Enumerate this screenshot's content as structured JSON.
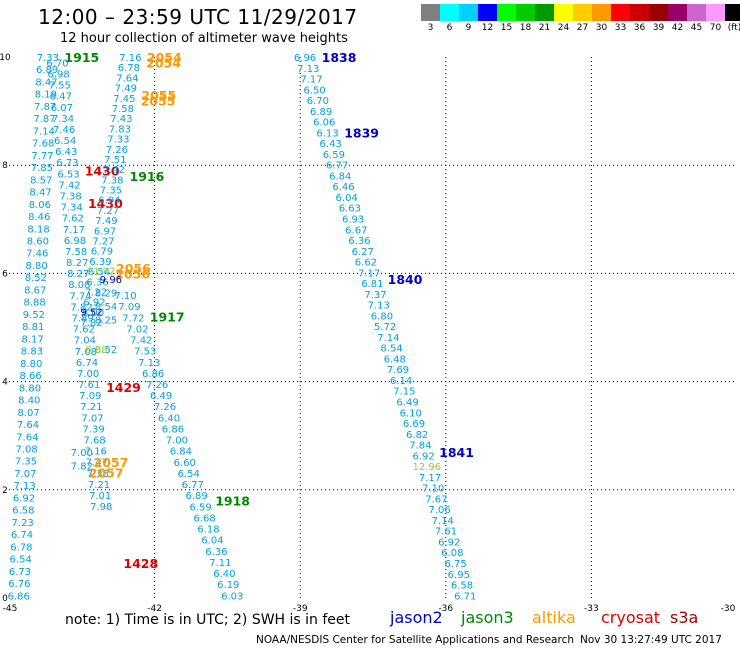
{
  "title": "12:00 – 23:59 UTC 11/29/2017",
  "subtitle": "12 hour collection of altimeter wave heights",
  "legend": {
    "labels": [
      "3",
      "6",
      "9",
      "12",
      "15",
      "18",
      "21",
      "24",
      "27",
      "30",
      "33",
      "36",
      "39",
      "42",
      "45",
      "70",
      "(ft)"
    ],
    "colors": [
      "#808080",
      "#00ffff",
      "#00d0ff",
      "#0000ff",
      "#00ff00",
      "#00cc00",
      "#009900",
      "#ffff00",
      "#ffcc00",
      "#ff9900",
      "#ff0000",
      "#cc0000",
      "#990000",
      "#990066",
      "#cc66cc",
      "#ff99ff",
      "#000000"
    ]
  },
  "note": "note: 1) Time is in UTC; 2) SWH is in feet",
  "satellites": [
    {
      "name": "jason2",
      "color": "#0000cc"
    },
    {
      "name": "jason3",
      "color": "#008800"
    },
    {
      "name": "altika",
      "color": "#ff9900"
    },
    {
      "name": "cryosat",
      "color": "#dd0000"
    },
    {
      "name": "s3a",
      "color": "#990000"
    }
  ],
  "footer_left": "NOAA/NESDIS Center for Satellite Applications and Research",
  "footer_right": "Nov 30 13:27:49 UTC 2017",
  "colors": {
    "value": "#00a0e0",
    "jason2": "#0000cc",
    "jason3": "#008800",
    "altika": "#ff9900",
    "cryosat": "#dd0000",
    "s3a": "#990000",
    "yellowgreen": "#99cc33",
    "navy": "#000099"
  },
  "chart_data": {
    "type": "scatter",
    "xlim": [
      -45,
      -30
    ],
    "ylim": [
      0,
      10
    ],
    "x_ticks": [
      "-45",
      "-42",
      "-39",
      "-36",
      "-33",
      "-30"
    ],
    "y_ticks": [
      "0",
      "2",
      "4",
      "6",
      "8",
      "10"
    ],
    "grid": true,
    "tracks": [
      {
        "sat": "jason3",
        "x0": -44.2,
        "y0": 10.0,
        "x1": -44.8,
        "y1": 0.05,
        "values": [
          "7.33",
          "6.89",
          "8.47",
          "8.19",
          "7.87",
          "7.87",
          "7.14",
          "7.68",
          "7.77",
          "7.85",
          "8.57",
          "8.47",
          "8.06",
          "8.46",
          "8.18",
          "8.60",
          "7.46",
          "8.80",
          "8.52",
          "8.67",
          "8.88",
          "9.52",
          "8.81",
          "8.17",
          "8.83",
          "8.80",
          "8.66",
          "8.80",
          "8.40",
          "8.07",
          "7.64",
          "7.64",
          "7.08",
          "7.35",
          "7.07",
          "7.13",
          "6.92",
          "6.58",
          "7.23",
          "6.74",
          "6.78",
          "6.54",
          "6.73",
          "6.76",
          "6.86"
        ],
        "labels": [
          {
            "text": "1915",
            "color": "jason3",
            "y": 10.0
          }
        ]
      },
      {
        "sat": "jason3",
        "x0": -44.0,
        "y0": 9.9,
        "x1": -43.1,
        "y1": 1.7,
        "values": [
          "6.70",
          "6.98",
          "7.55",
          "6.47",
          "6.07",
          "7.34",
          "7.46",
          "6.54",
          "6.43",
          "6.73",
          "6.53",
          "7.42",
          "7.38",
          "7.34",
          "7.62",
          "7.17",
          "6.98",
          "7.58",
          "8.27",
          "8.27",
          "8.08",
          "7.74",
          "7.82",
          "7.89",
          "7.62",
          "7.04",
          "7.08",
          "6.74",
          "7.00",
          "7.61",
          "7.09",
          "7.21",
          "7.07",
          "7.39",
          "7.68",
          "7.16",
          "7.47",
          "7.35",
          "7.21",
          "7.01",
          "7.98"
        ],
        "labels": [
          {
            "text": "1430",
            "color": "cryosat",
            "y": 7.9
          },
          {
            "text": "1430",
            "color": "cryosat",
            "y": 7.3
          },
          {
            "text": "1429",
            "color": "cryosat",
            "y": 3.9
          },
          {
            "text": "1428",
            "color": "cryosat",
            "y": 0.65
          }
        ]
      },
      {
        "sat": "jason3",
        "x0": -42.5,
        "y0": 10.0,
        "x1": -43.3,
        "y1": 5.1,
        "values": [
          "7.16",
          "6.78",
          "7.64",
          "7.49",
          "7.45",
          "7.58",
          "7.43",
          "7.83",
          "7.33",
          "7.26",
          "7.51",
          "7.42",
          "7.38",
          "7.35",
          "6.94",
          "7.27",
          "7.49",
          "6.97",
          "7.27",
          "6.79",
          "6.39",
          "6.54",
          "6.36",
          "7.22",
          "6.92",
          "8.00",
          "7.82"
        ],
        "labels": [
          {
            "text": "2054",
            "color": "altika",
            "y": 10.0
          },
          {
            "text": "2054",
            "color": "altika",
            "y": 9.9
          },
          {
            "text": "2055",
            "color": "altika",
            "y": 9.3
          },
          {
            "text": "2055",
            "color": "altika",
            "y": 9.2
          },
          {
            "text": "1916",
            "color": "jason3",
            "y": 7.8
          },
          {
            "text": "2056",
            "color": "altika",
            "y": 6.1
          },
          {
            "text": "2056",
            "color": "altika",
            "y": 6.0
          }
        ]
      },
      {
        "sat": "jason3",
        "x0": -42.6,
        "y0": 5.6,
        "x1": -40.4,
        "y1": 0.05,
        "values": [
          "7.10",
          "7.09",
          "7.72",
          "7.02",
          "7.42",
          "7.53",
          "7.13",
          "6.86",
          "7.26",
          "6.49",
          "7.26",
          "6.40",
          "6.86",
          "7.00",
          "6.84",
          "6.60",
          "6.54",
          "6.77",
          "6.89",
          "6.59",
          "6.68",
          "6.18",
          "6.04",
          "6.36",
          "7.11",
          "6.40",
          "6.19",
          "6.03"
        ],
        "labels": [
          {
            "text": "1917",
            "color": "jason3",
            "y": 5.2
          },
          {
            "text": "1918",
            "color": "jason3",
            "y": 1.8
          }
        ]
      },
      {
        "sat": "jason2",
        "x0": -38.9,
        "y0": 10.0,
        "x1": -35.6,
        "y1": 0.05,
        "values": [
          "6.96",
          "7.13",
          "7.17",
          "6.50",
          "6.70",
          "6.89",
          "6.06",
          "6.13",
          "6.43",
          "6.59",
          "6.77",
          "6.84",
          "6.46",
          "6.04",
          "6.63",
          "6.93",
          "6.67",
          "6.36",
          "6.27",
          "6.62",
          "7.17",
          "6.81",
          "7.37",
          "7.13",
          "6.80",
          "5.72",
          "7.14",
          "8.54",
          "6.48",
          "7.69",
          "6.14",
          "7.15",
          "6.49",
          "6.10",
          "6.69",
          "6.82",
          "7.84",
          "6.92",
          "12.96",
          "7.17",
          "7.10",
          "7.67",
          "7.06",
          "7.14",
          "7.61",
          "6.92",
          "6.08",
          "6.75",
          "6.95",
          "6.58",
          "6.71"
        ],
        "labels": [
          {
            "text": "1838",
            "color": "jason2",
            "y": 10.0
          },
          {
            "text": "1839",
            "color": "jason2",
            "y": 8.6
          },
          {
            "text": "1840",
            "color": "jason2",
            "y": 5.9
          },
          {
            "text": "1841",
            "color": "jason2",
            "y": 2.7
          }
        ]
      }
    ],
    "extra_points": [
      {
        "text": "9.96",
        "color": "navy",
        "x": -42.9,
        "y": 5.9
      },
      {
        "text": "9.52",
        "color": "navy",
        "x": -43.3,
        "y": 5.3
      },
      {
        "text": "8.29",
        "color": "value",
        "x": -43.0,
        "y": 5.65
      },
      {
        "text": "8.54",
        "color": "value",
        "x": -43.0,
        "y": 5.4
      },
      {
        "text": "8.25",
        "color": "value",
        "x": -43.0,
        "y": 5.15
      },
      {
        "text": "8.52",
        "color": "value",
        "x": -43.0,
        "y": 4.6
      },
      {
        "text": "7.00",
        "color": "value",
        "x": -43.5,
        "y": 2.7
      },
      {
        "text": "7.82",
        "color": "value",
        "x": -43.5,
        "y": 2.45
      },
      {
        "text": "21.92",
        "color": "yellowgreen",
        "x": -43.1,
        "y": 6.05
      },
      {
        "text": "8.88",
        "color": "yellowgreen",
        "x": -43.2,
        "y": 4.6
      },
      {
        "text": "2057",
        "color": "altika",
        "x": -42.9,
        "y": 2.5
      },
      {
        "text": "2057",
        "color": "altika",
        "x": -43.0,
        "y": 2.3
      }
    ]
  }
}
